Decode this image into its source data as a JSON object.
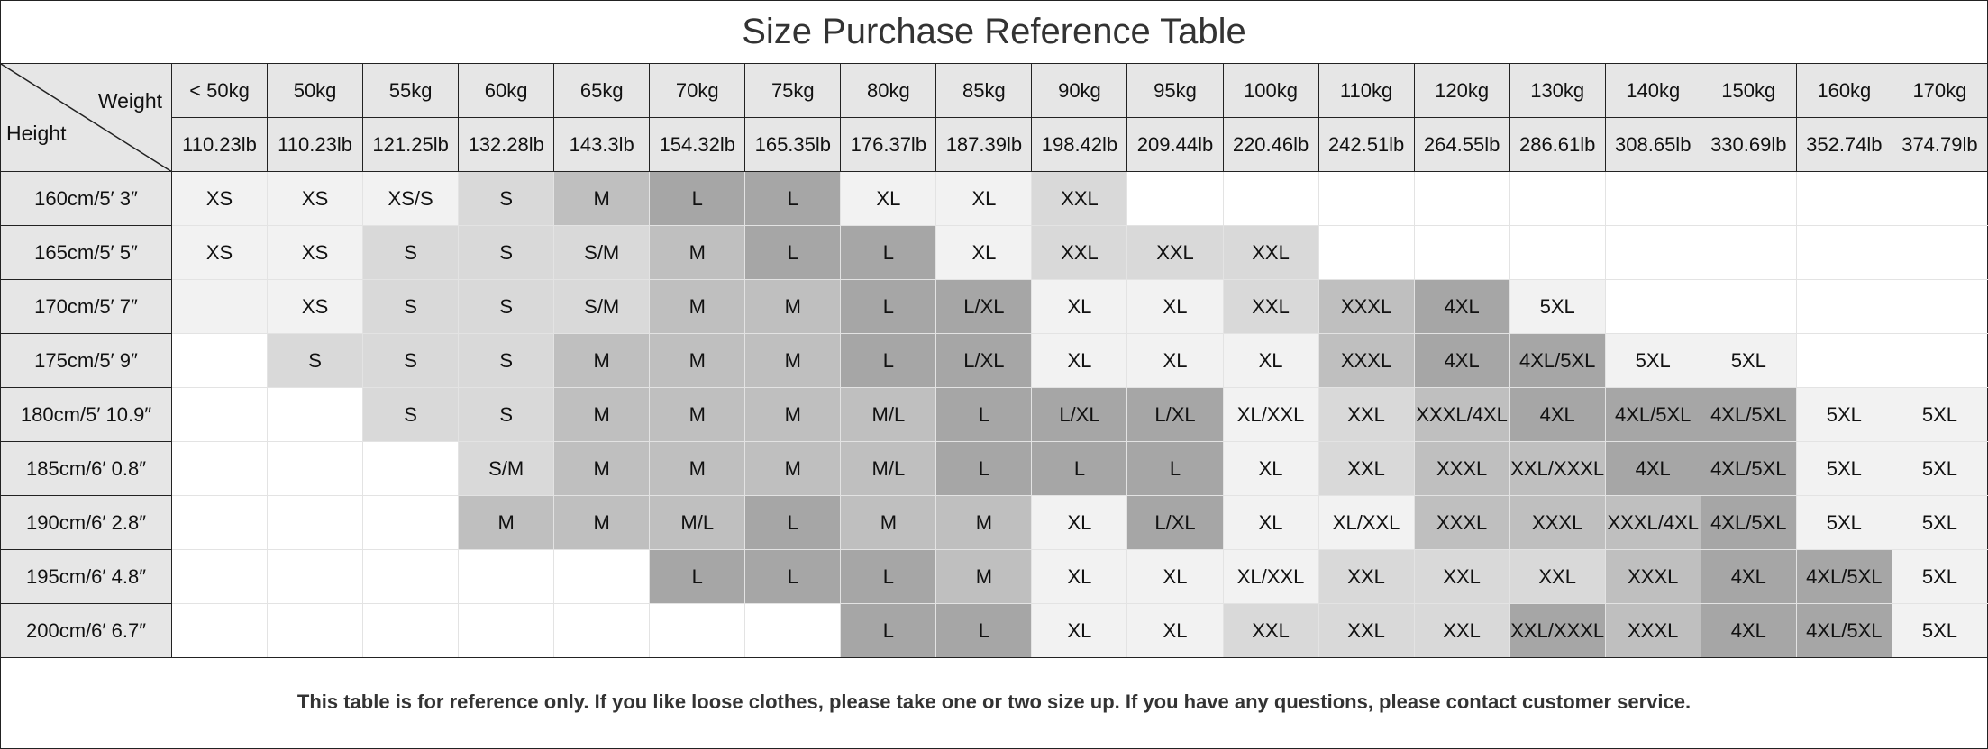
{
  "title": "Size Purchase Reference Table",
  "corner": {
    "weight_label": "Weight",
    "height_label": "Height"
  },
  "shades": [
    "#ffffff",
    "#f2f2f2",
    "#d9d9d9",
    "#bfbfbf",
    "#a6a6a6"
  ],
  "columns": [
    {
      "kg": "< 50kg",
      "lb": "110.23lb"
    },
    {
      "kg": "50kg",
      "lb": "110.23lb"
    },
    {
      "kg": "55kg",
      "lb": "121.25lb"
    },
    {
      "kg": "60kg",
      "lb": "132.28lb"
    },
    {
      "kg": "65kg",
      "lb": "143.3lb"
    },
    {
      "kg": "70kg",
      "lb": "154.32lb"
    },
    {
      "kg": "75kg",
      "lb": "165.35lb"
    },
    {
      "kg": "80kg",
      "lb": "176.37lb"
    },
    {
      "kg": "85kg",
      "lb": "187.39lb"
    },
    {
      "kg": "90kg",
      "lb": "198.42lb"
    },
    {
      "kg": "95kg",
      "lb": "209.44lb"
    },
    {
      "kg": "100kg",
      "lb": "220.46lb"
    },
    {
      "kg": "110kg",
      "lb": "242.51lb"
    },
    {
      "kg": "120kg",
      "lb": "264.55lb"
    },
    {
      "kg": "130kg",
      "lb": "286.61lb"
    },
    {
      "kg": "140kg",
      "lb": "308.65lb"
    },
    {
      "kg": "150kg",
      "lb": "330.69lb"
    },
    {
      "kg": "160kg",
      "lb": "352.74lb"
    },
    {
      "kg": "170kg",
      "lb": "374.79lb"
    }
  ],
  "rows": [
    {
      "height": "160cm/5′ 3″",
      "sizes": [
        "XS",
        "XS",
        "XS/S",
        "S",
        "M",
        "L",
        "L",
        "XL",
        "XL",
        "XXL",
        "",
        "",
        "",
        "",
        "",
        "",
        "",
        "",
        ""
      ],
      "shade": [
        1,
        1,
        1,
        2,
        3,
        4,
        4,
        1,
        1,
        2,
        0,
        0,
        0,
        0,
        0,
        0,
        0,
        0,
        0
      ]
    },
    {
      "height": "165cm/5′ 5″",
      "sizes": [
        "XS",
        "XS",
        "S",
        "S",
        "S/M",
        "M",
        "L",
        "L",
        "XL",
        "XXL",
        "XXL",
        "XXL",
        "",
        "",
        "",
        "",
        "",
        "",
        ""
      ],
      "shade": [
        1,
        1,
        2,
        2,
        2,
        3,
        4,
        4,
        1,
        2,
        2,
        2,
        0,
        0,
        0,
        0,
        0,
        0,
        0
      ]
    },
    {
      "height": "170cm/5′ 7″",
      "sizes": [
        "",
        "XS",
        "S",
        "S",
        "S/M",
        "M",
        "M",
        "L",
        "L/XL",
        "XL",
        "XL",
        "XXL",
        "XXXL",
        "4XL",
        "5XL",
        "",
        "",
        "",
        ""
      ],
      "shade": [
        1,
        1,
        2,
        2,
        2,
        3,
        3,
        4,
        4,
        1,
        1,
        2,
        3,
        4,
        1,
        0,
        0,
        0,
        0
      ]
    },
    {
      "height": "175cm/5′ 9″",
      "sizes": [
        "",
        "S",
        "S",
        "S",
        "M",
        "M",
        "M",
        "L",
        "L/XL",
        "XL",
        "XL",
        "XL",
        "XXXL",
        "4XL",
        "4XL/5XL",
        "5XL",
        "5XL",
        "",
        ""
      ],
      "shade": [
        0,
        2,
        2,
        2,
        3,
        3,
        3,
        4,
        4,
        1,
        1,
        1,
        3,
        4,
        4,
        1,
        1,
        0,
        0
      ]
    },
    {
      "height": "180cm/5′ 10.9″",
      "sizes": [
        "",
        "",
        "S",
        "S",
        "M",
        "M",
        "M",
        "M/L",
        "L",
        "L/XL",
        "L/XL",
        "XL/XXL",
        "XXL",
        "XXXL/4XL",
        "4XL",
        "4XL/5XL",
        "4XL/5XL",
        "5XL",
        "5XL"
      ],
      "shade": [
        0,
        0,
        2,
        2,
        3,
        3,
        3,
        3,
        4,
        4,
        4,
        1,
        2,
        3,
        4,
        4,
        4,
        1,
        1
      ]
    },
    {
      "height": "185cm/6′ 0.8″",
      "sizes": [
        "",
        "",
        "",
        "S/M",
        "M",
        "M",
        "M",
        "M/L",
        "L",
        "L",
        "L",
        "XL",
        "XXL",
        "XXXL",
        "XXL/XXXL",
        "4XL",
        "4XL/5XL",
        "5XL",
        "5XL"
      ],
      "shade": [
        0,
        0,
        0,
        2,
        3,
        3,
        3,
        3,
        4,
        4,
        4,
        1,
        2,
        3,
        3,
        4,
        4,
        1,
        1
      ]
    },
    {
      "height": "190cm/6′ 2.8″",
      "sizes": [
        "",
        "",
        "",
        "M",
        "M",
        "M/L",
        "L",
        "M",
        "M",
        "XL",
        "L/XL",
        "XL",
        "XL/XXL",
        "XXXL",
        "XXXL",
        "XXXL/4XL",
        "4XL/5XL",
        "5XL",
        "5XL"
      ],
      "shade": [
        0,
        0,
        0,
        3,
        3,
        3,
        4,
        3,
        3,
        1,
        4,
        1,
        1,
        3,
        3,
        3,
        4,
        1,
        1
      ]
    },
    {
      "height": "195cm/6′ 4.8″",
      "sizes": [
        "",
        "",
        "",
        "",
        "",
        "L",
        "L",
        "L",
        "M",
        "XL",
        "XL",
        "XL/XXL",
        "XXL",
        "XXL",
        "XXL",
        "XXXL",
        "4XL",
        "4XL/5XL",
        "5XL"
      ],
      "shade": [
        0,
        0,
        0,
        0,
        0,
        4,
        4,
        4,
        3,
        1,
        1,
        1,
        2,
        2,
        2,
        3,
        4,
        4,
        1
      ]
    },
    {
      "height": "200cm/6′ 6.7″",
      "sizes": [
        "",
        "",
        "",
        "",
        "",
        "",
        "",
        "L",
        "L",
        "XL",
        "XL",
        "XXL",
        "XXL",
        "XXL",
        "XXL/XXXL",
        "XXXL",
        "4XL",
        "4XL/5XL",
        "5XL"
      ],
      "shade": [
        0,
        0,
        0,
        0,
        0,
        0,
        0,
        4,
        4,
        1,
        1,
        2,
        2,
        2,
        4,
        3,
        4,
        4,
        1
      ]
    }
  ],
  "note": "This table is for reference only. If you like loose clothes, please take one or two size up. If you have any questions, please contact customer service."
}
